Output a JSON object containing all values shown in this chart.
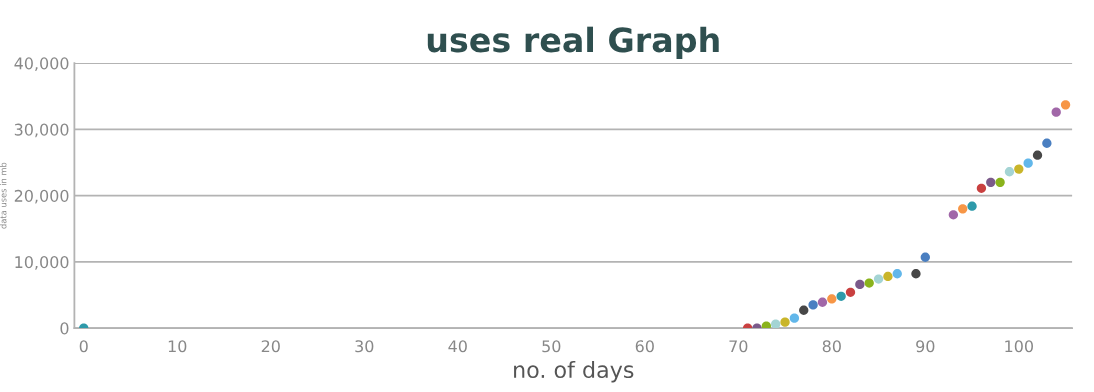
{
  "chart_data": {
    "type": "scatter",
    "title": "uses real Graph",
    "xlabel": "no. of days",
    "ylabel": "data uses in mb",
    "x": [
      0,
      71,
      72,
      73,
      74,
      75,
      76,
      77,
      78,
      79,
      80,
      81,
      82,
      83,
      84,
      85,
      86,
      87,
      89,
      90,
      93,
      94,
      95,
      96,
      97,
      98,
      99,
      100,
      101,
      102,
      103,
      104,
      105
    ],
    "values": [
      0,
      0,
      0,
      300,
      600,
      900,
      1500,
      2700,
      3500,
      3900,
      4400,
      4800,
      5400,
      6600,
      6800,
      7400,
      7800,
      8200,
      8200,
      10700,
      17100,
      18000,
      18400,
      21100,
      22000,
      22000,
      23600,
      24000,
      24900,
      26100,
      27900,
      32600,
      33700
    ],
    "colors": [
      "#2e9aaa",
      "#c94040",
      "#7b5a8a",
      "#8ab31c",
      "#a4d4d4",
      "#c9b52a",
      "#62b7ea",
      "#474747",
      "#4a7fc1",
      "#a167a8",
      "#f79646",
      "#2e9aaa",
      "#c94040",
      "#7b5a8a",
      "#8ab31c",
      "#a4d4d4",
      "#c9b52a",
      "#62b7ea",
      "#474747",
      "#4a7fc1",
      "#a167a8",
      "#f79646",
      "#2e9aaa",
      "#c94040",
      "#7b5a8a",
      "#8ab31c",
      "#a4d4d4",
      "#c9b52a",
      "#62b7ea",
      "#474747",
      "#4a7fc1",
      "#a167a8",
      "#f79646"
    ],
    "xlim": [
      -1,
      105.7
    ],
    "ylim": [
      0,
      40000
    ],
    "xticks": [
      0,
      10,
      20,
      30,
      40,
      50,
      60,
      70,
      80,
      90,
      100
    ],
    "yticks": [
      {
        "value": 0,
        "label": "0"
      },
      {
        "value": 10000,
        "label": "10,000"
      },
      {
        "value": 20000,
        "label": "20,000"
      },
      {
        "value": 30000,
        "label": "30,000"
      },
      {
        "value": 40000,
        "label": "40,000"
      }
    ],
    "grid": "y",
    "marker": "circle"
  }
}
